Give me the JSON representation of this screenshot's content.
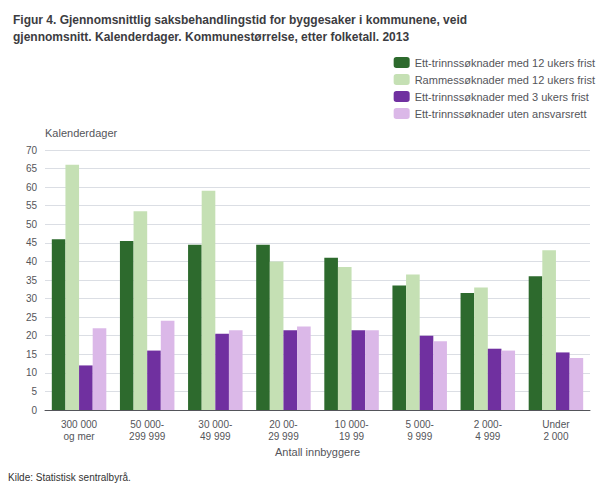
{
  "chart_data": {
    "type": "bar",
    "title": "Figur 4. Gjennomsnittlig saksbehandlingstid for byggesaker i kommunene, veid\ngjennomsnitt. Kalenderdager. Kommunestørrelse, etter folketall. 2013",
    "ylabel": "Kalenderdager",
    "xlabel": "Antall innbyggere",
    "source": "Kilde: Statistisk sentralbyrå.",
    "categories": [
      "300 000\nog mer",
      "50 000-\n299 999",
      "30 000-\n49 999",
      "20 00-\n29 999",
      "10 000-\n19 99",
      "5 000-\n9 999",
      "2 000-\n4 999",
      "Under\n2 000"
    ],
    "series": [
      {
        "name": "Ett-trinnssøknader med 12 ukers frist",
        "color": "#2d6a2d",
        "values": [
          46,
          45.5,
          44.5,
          44.5,
          41,
          33.5,
          31.5,
          36
        ]
      },
      {
        "name": "Rammessøknader med 12 ukers frist",
        "color": "#c5e0b4",
        "values": [
          66,
          53.5,
          59,
          40,
          38.5,
          36.5,
          33,
          43
        ]
      },
      {
        "name": "Ett-trinnssøknader med 3 ukers frist",
        "color": "#7030a0",
        "values": [
          12,
          16,
          20.5,
          21.5,
          21.5,
          20,
          16.5,
          15.5
        ]
      },
      {
        "name": "Ett-trinnssøknader uten ansvarsrett",
        "color": "#dbb8e8",
        "values": [
          22,
          24,
          21.5,
          22.5,
          21.5,
          18.5,
          16,
          14
        ]
      }
    ],
    "ylim": [
      0,
      70
    ],
    "yticks": [
      0,
      5,
      10,
      15,
      20,
      25,
      30,
      35,
      40,
      45,
      50,
      55,
      60,
      65,
      70
    ],
    "grid": true,
    "legend": "upper right"
  }
}
